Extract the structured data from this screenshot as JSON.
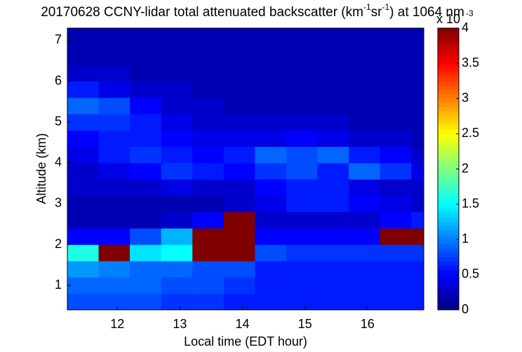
{
  "chart_data": {
    "type": "heatmap",
    "title_parts": [
      {
        "text": "20170628 CCNY-lidar total attenuated backscatter (km",
        "sup": false
      },
      {
        "text": "-1",
        "sup": true
      },
      {
        "text": "sr",
        "sup": false
      },
      {
        "text": "-1",
        "sup": true
      },
      {
        "text": ") at 1064 nm",
        "sup": false
      }
    ],
    "xlabel": "Local time (EDT hour)",
    "ylabel": "Altitude (km)",
    "xlim": [
      11.2,
      16.9
    ],
    "xticks": [
      12,
      13,
      14,
      15,
      16
    ],
    "ylim": [
      0.4,
      7.3
    ],
    "yticks": [
      1,
      2,
      3,
      4,
      5,
      6,
      7
    ],
    "xbins": [
      11.2,
      11.7,
      12.2,
      12.7,
      13.2,
      13.7,
      14.2,
      14.7,
      15.2,
      15.7,
      16.2,
      16.7,
      16.9
    ],
    "ybins": [
      0.4,
      0.8,
      1.2,
      1.6,
      2.0,
      2.4,
      2.8,
      3.2,
      3.6,
      4.0,
      4.4,
      4.8,
      5.2,
      5.6,
      6.0,
      6.4,
      6.8,
      7.3
    ],
    "values": [
      [
        0.8,
        0.8,
        0.8,
        0.7,
        0.7,
        0.6,
        0.6,
        0.6,
        0.6,
        0.6,
        0.6,
        0.6
      ],
      [
        0.9,
        0.9,
        0.9,
        0.8,
        0.8,
        0.7,
        0.6,
        0.6,
        0.6,
        0.6,
        0.6,
        0.6
      ],
      [
        1.1,
        1.0,
        0.9,
        0.9,
        0.8,
        0.8,
        0.6,
        0.6,
        0.6,
        0.6,
        0.6,
        0.6
      ],
      [
        1.6,
        4,
        1.4,
        1.5,
        4,
        4,
        0.8,
        0.7,
        0.7,
        0.7,
        0.7,
        0.7
      ],
      [
        0.5,
        0.5,
        0.8,
        1.2,
        4,
        4,
        0.5,
        0.5,
        0.5,
        0.5,
        4,
        4
      ],
      [
        0.2,
        0.2,
        0.2,
        0.3,
        0.5,
        4,
        0.3,
        0.3,
        0.3,
        0.3,
        0.5,
        0.6
      ],
      [
        0.2,
        0.2,
        0.2,
        0.2,
        0.2,
        0.3,
        0.4,
        0.6,
        0.6,
        0.5,
        0.4,
        0.3
      ],
      [
        0.3,
        0.3,
        0.3,
        0.4,
        0.3,
        0.3,
        0.5,
        0.6,
        0.6,
        0.4,
        0.3,
        0.3
      ],
      [
        0.3,
        0.4,
        0.5,
        0.7,
        0.6,
        0.5,
        0.7,
        0.8,
        0.6,
        0.9,
        0.7,
        0.4
      ],
      [
        0.4,
        0.6,
        0.7,
        0.6,
        0.5,
        0.6,
        0.9,
        0.8,
        0.9,
        0.6,
        0.5,
        0.3
      ],
      [
        0.5,
        0.6,
        0.6,
        0.5,
        0.4,
        0.4,
        0.4,
        0.5,
        0.4,
        0.3,
        0.3,
        0.2
      ],
      [
        0.7,
        0.7,
        0.6,
        0.4,
        0.3,
        0.3,
        0.3,
        0.3,
        0.3,
        0.2,
        0.2,
        0.2
      ],
      [
        0.9,
        0.8,
        0.5,
        0.3,
        0.3,
        0.2,
        0.2,
        0.2,
        0.2,
        0.2,
        0.2,
        0.2
      ],
      [
        0.6,
        0.4,
        0.3,
        0.3,
        0.2,
        0.2,
        0.2,
        0.2,
        0.2,
        0.2,
        0.2,
        0.2
      ],
      [
        0.3,
        0.3,
        0.2,
        0.2,
        0.2,
        0.2,
        0.2,
        0.2,
        0.2,
        0.2,
        0.2,
        0.2
      ],
      [
        0.2,
        0.2,
        0.2,
        0.2,
        0.2,
        0.2,
        0.2,
        0.2,
        0.2,
        0.2,
        0.2,
        0.2
      ],
      [
        0.2,
        0.2,
        0.2,
        0.2,
        0.2,
        0.2,
        0.2,
        0.2,
        0.2,
        0.2,
        0.2,
        0.2
      ]
    ],
    "colormap": "jet",
    "colorbar": {
      "lim": [
        0,
        4
      ],
      "ticks": [
        0,
        0.5,
        1,
        1.5,
        2,
        2.5,
        3,
        3.5,
        4
      ],
      "multiplier": "x 10",
      "exponent": "-3"
    }
  }
}
